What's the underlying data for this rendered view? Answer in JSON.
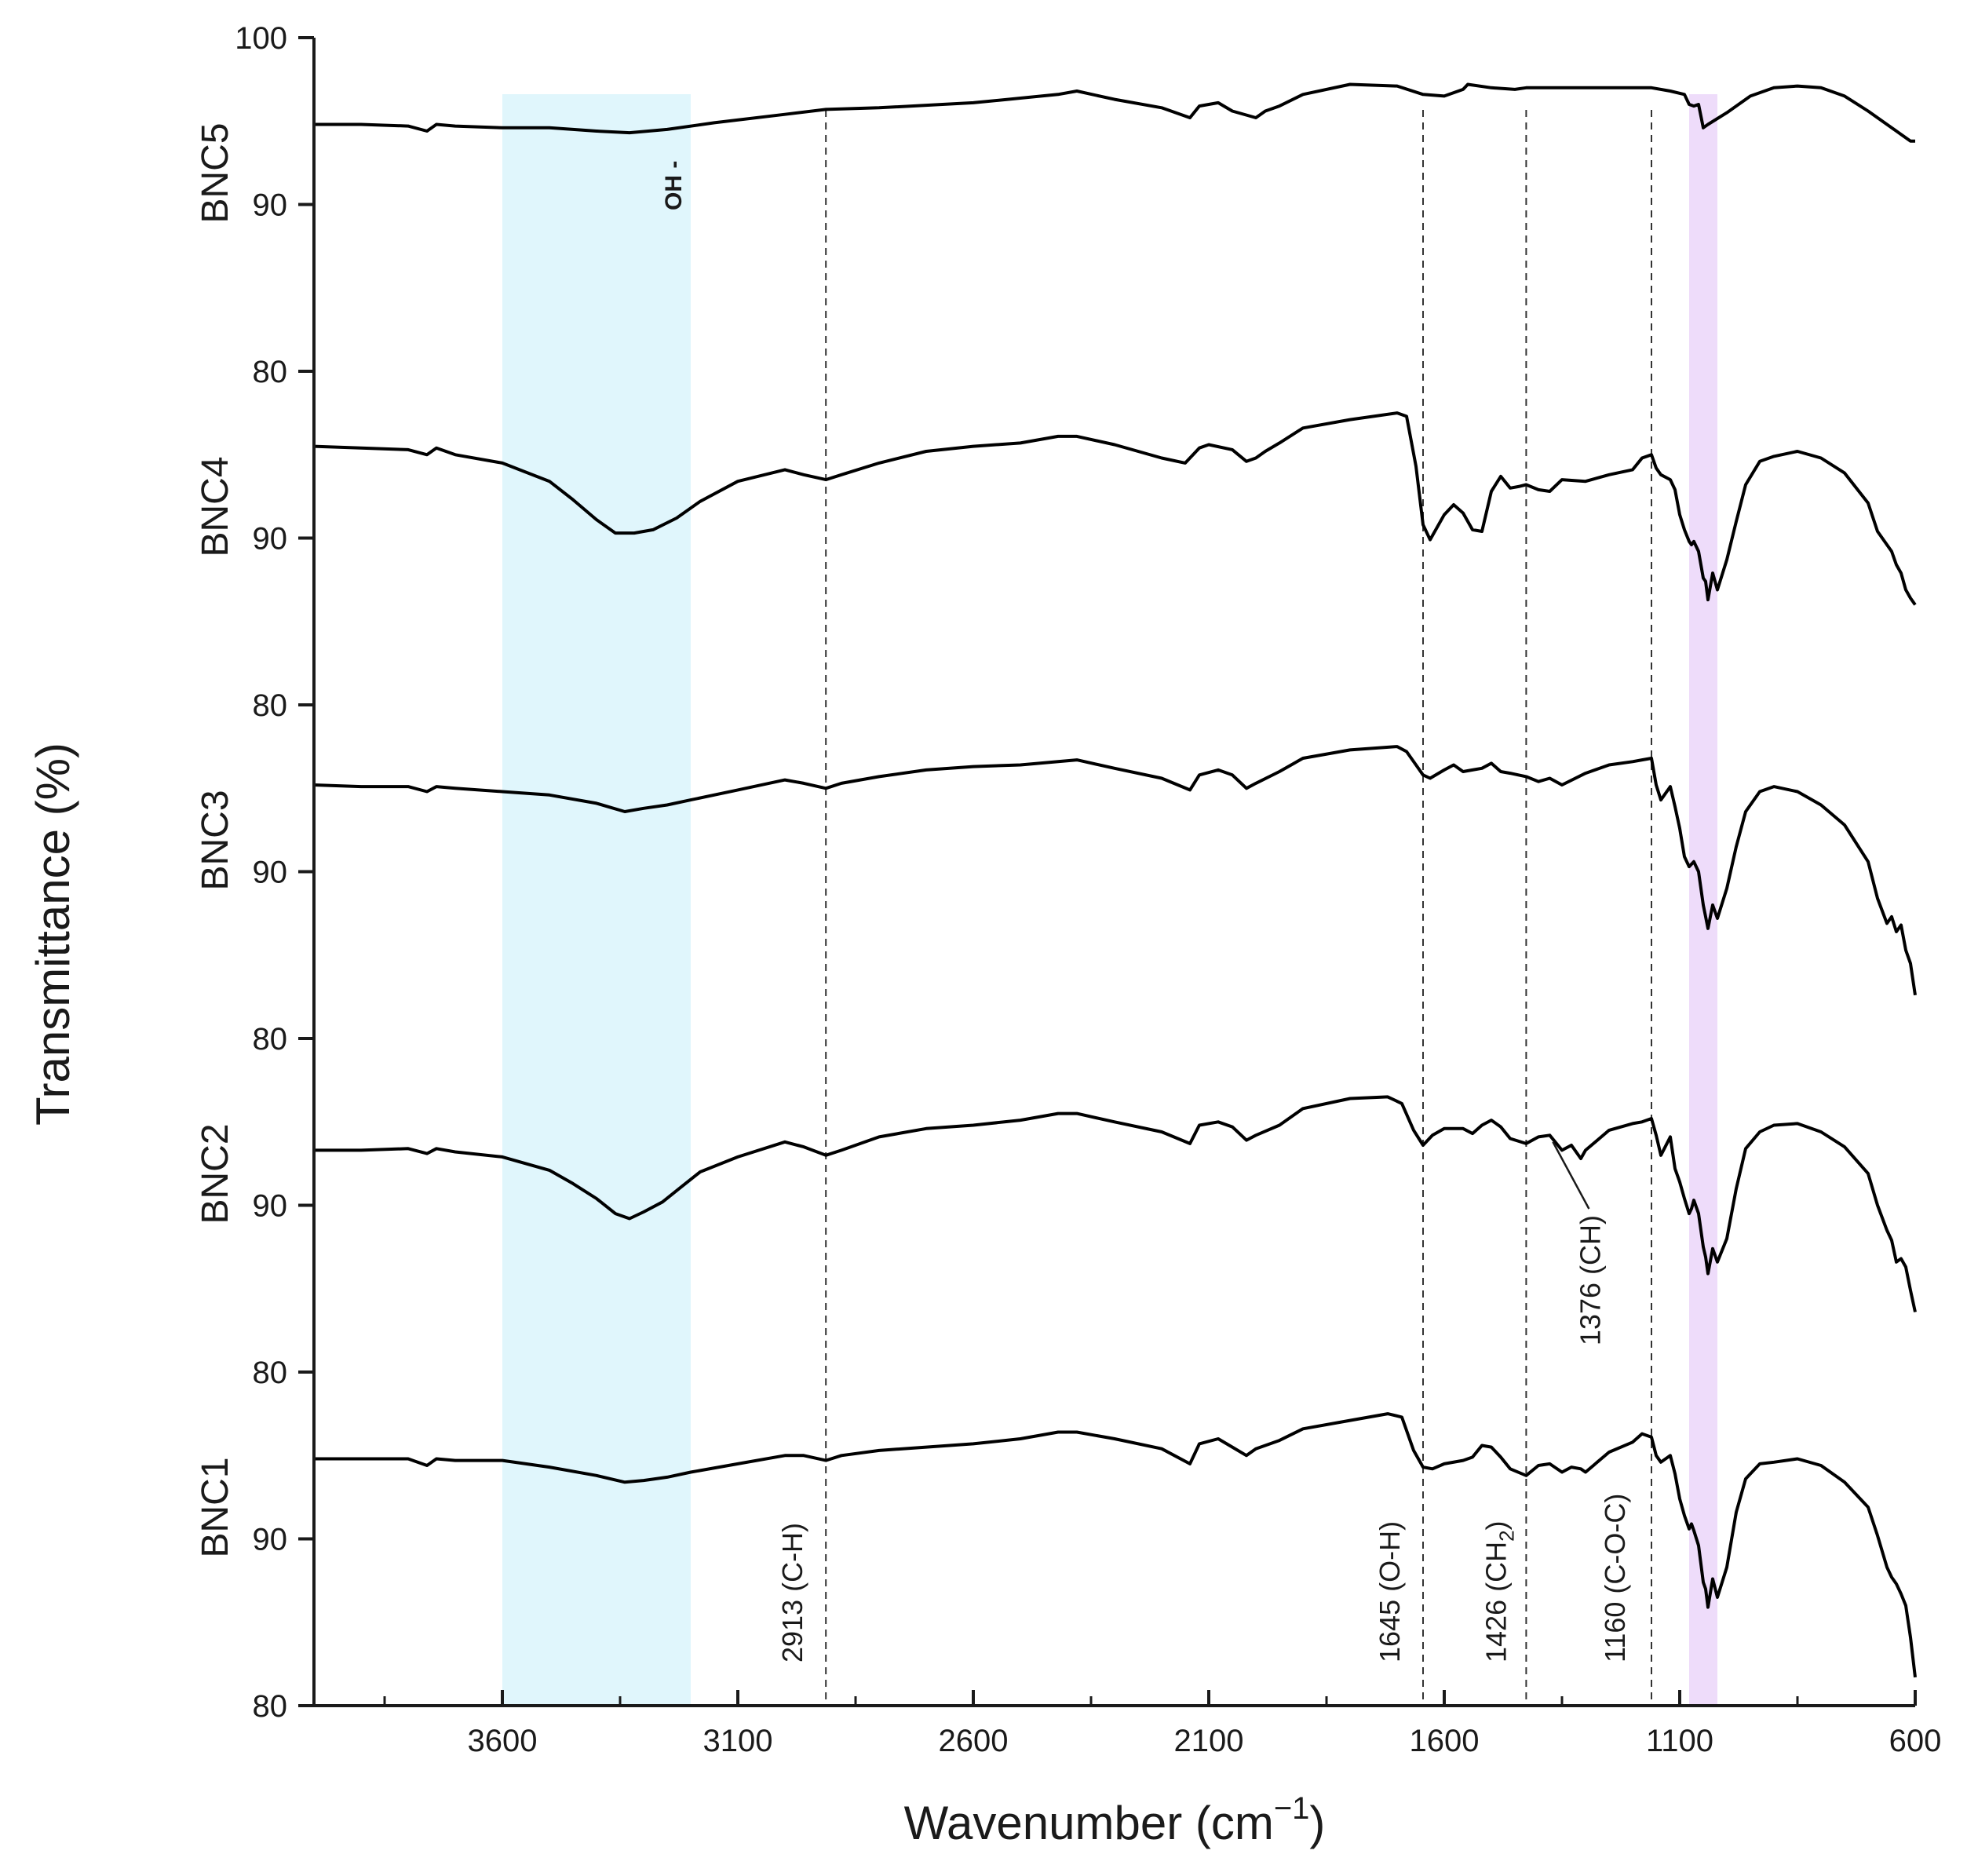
{
  "chart_data": {
    "type": "line",
    "title": "",
    "xlabel": "Wavenumber (cm",
    "xlabel_sup": "−1",
    "xlabel_close": ")",
    "ylabel": "Transmittance (%)",
    "xlim": [
      4000,
      600
    ],
    "x_ticks": [
      3600,
      3100,
      2600,
      2100,
      1600,
      1100,
      600
    ],
    "y_ticks": [
      80,
      90
    ],
    "top_tick": 100,
    "panel_ylim": [
      80,
      100
    ],
    "colors": {
      "line": "#000000",
      "oh_band": "#e0f6fc",
      "coc_band": "#eedcfa",
      "axis": "#1a1a1a"
    },
    "bands": [
      {
        "name": "oh-band",
        "from": 3600,
        "to": 3200,
        "color": "#e0f6fc"
      },
      {
        "name": "coc-band",
        "from": 1080,
        "to": 1020,
        "color": "#eedcfa"
      }
    ],
    "vlines": [
      {
        "x": 2913,
        "label": "2913 (C-H)"
      },
      {
        "x": 1645,
        "label": "1645 (O-H)"
      },
      {
        "x": 1426,
        "label": "1426 (CH",
        "sub": "2",
        "tail": ")"
      },
      {
        "x": 1160,
        "label": "1160 (C-O-C)"
      }
    ],
    "annotations": [
      {
        "label": "OH -",
        "x": 3240
      },
      {
        "label": "1376 (CH)",
        "x": 1376
      }
    ],
    "series": [
      {
        "name": "BNC5",
        "x": [
          4000,
          3900,
          3800,
          3760,
          3740,
          3700,
          3600,
          3500,
          3400,
          3330,
          3250,
          3150,
          3000,
          2913,
          2800,
          2600,
          2420,
          2380,
          2300,
          2200,
          2140,
          2120,
          2080,
          2050,
          2000,
          1980,
          1950,
          1900,
          1800,
          1700,
          1645,
          1600,
          1560,
          1550,
          1500,
          1450,
          1426,
          1400,
          1300,
          1200,
          1160,
          1120,
          1090,
          1080,
          1070,
          1060,
          1050,
          1040,
          1000,
          950,
          900,
          850,
          800,
          750,
          700,
          660,
          630,
          610,
          600
        ],
        "values": [
          94.8,
          94.8,
          94.7,
          94.4,
          94.8,
          94.7,
          94.6,
          94.6,
          94.4,
          94.3,
          94.5,
          94.9,
          95.4,
          95.7,
          95.8,
          96.1,
          96.6,
          96.8,
          96.3,
          95.8,
          95.2,
          95.9,
          96.1,
          95.6,
          95.2,
          95.6,
          95.9,
          96.6,
          97.2,
          97.1,
          96.6,
          96.5,
          96.9,
          97.2,
          97.0,
          96.9,
          97.0,
          97.0,
          97.0,
          97.0,
          97.0,
          96.8,
          96.6,
          96.0,
          95.9,
          96.0,
          94.6,
          94.8,
          95.5,
          96.5,
          97.0,
          97.1,
          97.0,
          96.5,
          95.6,
          94.8,
          94.2,
          93.8,
          93.8
        ]
      },
      {
        "name": "BNC4",
        "x": [
          4000,
          3900,
          3800,
          3760,
          3740,
          3700,
          3600,
          3500,
          3450,
          3400,
          3360,
          3320,
          3280,
          3230,
          3180,
          3100,
          3000,
          2960,
          2913,
          2880,
          2800,
          2700,
          2600,
          2500,
          2420,
          2380,
          2300,
          2200,
          2150,
          2120,
          2100,
          2050,
          2020,
          2000,
          1980,
          1950,
          1900,
          1800,
          1700,
          1680,
          1660,
          1645,
          1630,
          1600,
          1580,
          1560,
          1540,
          1520,
          1500,
          1480,
          1460,
          1440,
          1426,
          1400,
          1376,
          1350,
          1300,
          1250,
          1200,
          1180,
          1160,
          1150,
          1140,
          1120,
          1110,
          1100,
          1090,
          1080,
          1075,
          1070,
          1060,
          1050,
          1045,
          1040,
          1030,
          1020,
          1000,
          980,
          960,
          930,
          900,
          850,
          800,
          750,
          700,
          680,
          660,
          650,
          640,
          630,
          620,
          610,
          600
        ],
        "values": [
          95.5,
          95.4,
          95.3,
          95.0,
          95.4,
          95.0,
          94.5,
          93.4,
          92.3,
          91.1,
          90.3,
          90.3,
          90.5,
          91.2,
          92.2,
          93.4,
          94.1,
          93.8,
          93.5,
          93.8,
          94.5,
          95.2,
          95.5,
          95.7,
          96.1,
          96.1,
          95.6,
          94.8,
          94.5,
          95.4,
          95.6,
          95.3,
          94.6,
          94.8,
          95.2,
          95.7,
          96.6,
          97.1,
          97.5,
          97.3,
          94.3,
          90.8,
          89.9,
          91.4,
          92.0,
          91.5,
          90.5,
          90.4,
          92.8,
          93.7,
          93.0,
          93.1,
          93.2,
          92.9,
          92.8,
          93.5,
          93.4,
          93.8,
          94.1,
          94.8,
          95.0,
          94.2,
          93.8,
          93.5,
          92.9,
          91.4,
          90.5,
          89.8,
          89.6,
          89.8,
          89.2,
          87.6,
          87.4,
          86.3,
          87.9,
          86.9,
          88.7,
          91.0,
          93.2,
          94.6,
          94.9,
          95.2,
          94.8,
          93.9,
          92.1,
          90.4,
          89.6,
          89.2,
          88.4,
          87.9,
          86.9,
          86.4,
          86.0
        ]
      },
      {
        "name": "BNC3",
        "x": [
          4000,
          3900,
          3800,
          3760,
          3740,
          3700,
          3600,
          3500,
          3400,
          3340,
          3300,
          3250,
          3200,
          3100,
          3000,
          2960,
          2913,
          2880,
          2800,
          2700,
          2600,
          2500,
          2420,
          2380,
          2300,
          2200,
          2140,
          2120,
          2080,
          2050,
          2020,
          2000,
          1950,
          1900,
          1800,
          1700,
          1680,
          1660,
          1645,
          1630,
          1600,
          1580,
          1560,
          1540,
          1520,
          1500,
          1480,
          1460,
          1426,
          1400,
          1376,
          1350,
          1300,
          1250,
          1200,
          1180,
          1160,
          1150,
          1140,
          1120,
          1110,
          1100,
          1090,
          1080,
          1070,
          1060,
          1050,
          1045,
          1040,
          1030,
          1020,
          1000,
          980,
          960,
          930,
          900,
          850,
          800,
          750,
          700,
          680,
          660,
          650,
          640,
          630,
          620,
          610,
          600
        ],
        "values": [
          95.2,
          95.1,
          95.1,
          94.8,
          95.1,
          95.0,
          94.8,
          94.6,
          94.1,
          93.6,
          93.8,
          94.0,
          94.3,
          94.9,
          95.5,
          95.3,
          95.0,
          95.3,
          95.7,
          96.1,
          96.3,
          96.4,
          96.6,
          96.7,
          96.2,
          95.6,
          94.9,
          95.8,
          96.1,
          95.8,
          95.0,
          95.3,
          96.0,
          96.8,
          97.3,
          97.5,
          97.2,
          96.4,
          95.8,
          95.6,
          96.1,
          96.4,
          96.0,
          96.1,
          96.2,
          96.5,
          96.0,
          95.9,
          95.7,
          95.4,
          95.6,
          95.2,
          95.9,
          96.4,
          96.6,
          96.7,
          96.8,
          95.2,
          94.3,
          95.1,
          93.9,
          92.6,
          90.9,
          90.3,
          90.6,
          90.0,
          88.0,
          87.3,
          86.6,
          88.0,
          87.2,
          89.0,
          91.5,
          93.6,
          94.8,
          95.1,
          94.8,
          94.0,
          92.8,
          90.6,
          88.4,
          86.9,
          87.3,
          86.4,
          86.8,
          85.3,
          84.5,
          82.6
        ]
      },
      {
        "name": "BNC2",
        "x": [
          4000,
          3900,
          3800,
          3760,
          3740,
          3700,
          3600,
          3500,
          3450,
          3400,
          3360,
          3330,
          3300,
          3260,
          3220,
          3180,
          3100,
          3000,
          2960,
          2913,
          2880,
          2800,
          2700,
          2600,
          2500,
          2420,
          2380,
          2300,
          2200,
          2140,
          2120,
          2080,
          2050,
          2020,
          2000,
          1950,
          1900,
          1800,
          1720,
          1690,
          1665,
          1645,
          1625,
          1600,
          1560,
          1540,
          1520,
          1500,
          1480,
          1460,
          1426,
          1400,
          1376,
          1350,
          1330,
          1310,
          1300,
          1250,
          1200,
          1180,
          1160,
          1150,
          1140,
          1120,
          1110,
          1100,
          1090,
          1080,
          1075,
          1070,
          1060,
          1050,
          1045,
          1040,
          1030,
          1020,
          1000,
          980,
          960,
          930,
          900,
          850,
          800,
          750,
          700,
          680,
          660,
          650,
          640,
          630,
          620,
          610,
          600
        ],
        "values": [
          93.3,
          93.3,
          93.4,
          93.1,
          93.4,
          93.2,
          92.9,
          92.1,
          91.3,
          90.4,
          89.5,
          89.2,
          89.6,
          90.2,
          91.1,
          92.0,
          92.9,
          93.8,
          93.5,
          93.0,
          93.3,
          94.1,
          94.6,
          94.8,
          95.1,
          95.5,
          95.5,
          95.0,
          94.4,
          93.7,
          94.8,
          95.0,
          94.7,
          93.9,
          94.2,
          94.8,
          95.8,
          96.4,
          96.5,
          96.1,
          94.5,
          93.6,
          94.2,
          94.6,
          94.6,
          94.3,
          94.8,
          95.1,
          94.7,
          94.0,
          93.7,
          94.1,
          94.2,
          93.3,
          93.6,
          92.8,
          93.3,
          94.5,
          94.9,
          95.0,
          95.2,
          94.2,
          93.0,
          94.1,
          92.2,
          91.4,
          90.4,
          89.5,
          89.8,
          90.3,
          89.5,
          87.5,
          86.9,
          85.9,
          87.4,
          86.6,
          88.0,
          91.0,
          93.4,
          94.4,
          94.8,
          94.9,
          94.4,
          93.5,
          91.9,
          90.0,
          88.5,
          87.9,
          86.6,
          86.8,
          86.3,
          84.9,
          83.6
        ]
      },
      {
        "name": "BNC1",
        "x": [
          4000,
          3900,
          3800,
          3760,
          3740,
          3700,
          3600,
          3500,
          3400,
          3340,
          3300,
          3250,
          3200,
          3100,
          3000,
          2960,
          2913,
          2880,
          2800,
          2700,
          2600,
          2500,
          2420,
          2380,
          2300,
          2200,
          2140,
          2120,
          2080,
          2050,
          2020,
          2000,
          1950,
          1900,
          1800,
          1720,
          1690,
          1665,
          1645,
          1625,
          1600,
          1560,
          1540,
          1520,
          1500,
          1480,
          1460,
          1426,
          1400,
          1376,
          1350,
          1330,
          1310,
          1300,
          1250,
          1200,
          1180,
          1160,
          1150,
          1140,
          1120,
          1110,
          1100,
          1090,
          1080,
          1075,
          1070,
          1060,
          1050,
          1045,
          1040,
          1030,
          1020,
          1000,
          980,
          960,
          930,
          900,
          850,
          800,
          750,
          700,
          680,
          660,
          650,
          640,
          630,
          620,
          610,
          600
        ],
        "values": [
          94.8,
          94.8,
          94.8,
          94.4,
          94.8,
          94.7,
          94.7,
          94.3,
          93.8,
          93.4,
          93.5,
          93.7,
          94.0,
          94.5,
          95.0,
          95.0,
          94.7,
          95.0,
          95.3,
          95.5,
          95.7,
          96.0,
          96.4,
          96.4,
          96.0,
          95.4,
          94.5,
          95.7,
          96.0,
          95.5,
          95.0,
          95.4,
          95.9,
          96.6,
          97.1,
          97.5,
          97.3,
          95.3,
          94.3,
          94.2,
          94.5,
          94.7,
          94.9,
          95.6,
          95.5,
          94.9,
          94.2,
          93.8,
          94.4,
          94.5,
          94.0,
          94.3,
          94.2,
          94.0,
          95.2,
          95.8,
          96.3,
          96.1,
          95.0,
          94.6,
          95.0,
          93.9,
          92.4,
          91.4,
          90.6,
          90.9,
          90.5,
          89.6,
          87.4,
          87.0,
          85.9,
          87.6,
          86.5,
          88.3,
          91.6,
          93.6,
          94.5,
          94.6,
          94.8,
          94.4,
          93.4,
          91.9,
          90.2,
          88.3,
          87.7,
          87.3,
          86.7,
          86.0,
          84.1,
          81.7
        ]
      }
    ]
  }
}
